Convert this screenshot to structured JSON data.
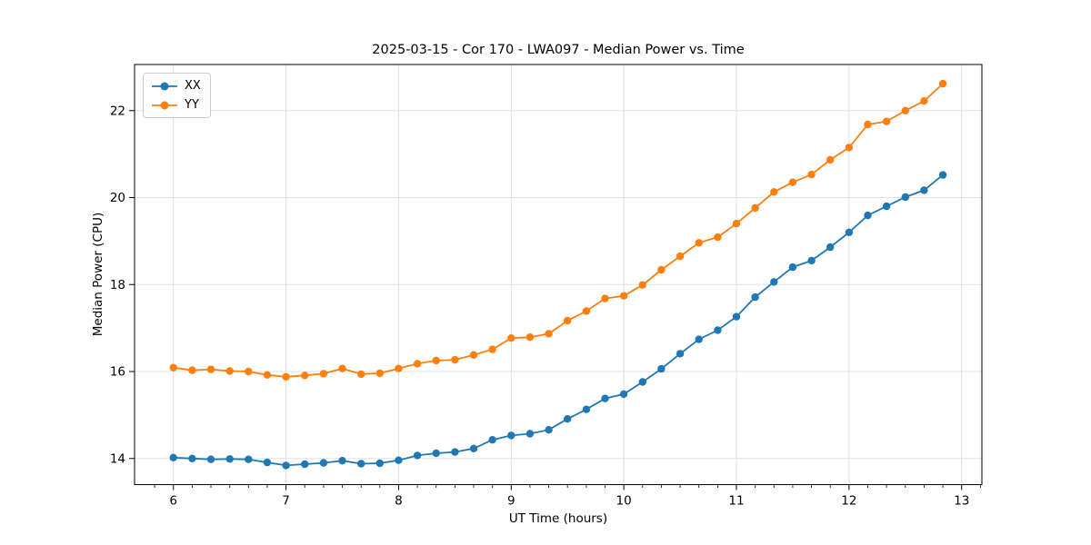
{
  "chart_data": {
    "type": "line",
    "title": "2025-03-15 - Cor 170 - LWA097 - Median Power vs. Time",
    "xlabel": "UT Time (hours)",
    "ylabel": "Median Power (CPU)",
    "xlim": [
      5.655,
      13.18
    ],
    "ylim": [
      13.4,
      23.06
    ],
    "x_ticks": [
      6,
      7,
      8,
      9,
      10,
      11,
      12,
      13
    ],
    "y_ticks": [
      14,
      16,
      18,
      20,
      22
    ],
    "x_minor_start": 5.8333,
    "x_minor_step": 0.16667,
    "grid": true,
    "grid_color": "#e0e0e0",
    "spine_color": "#000000",
    "text_color": "#000000",
    "legend_position": "upper-left",
    "marker": "o",
    "x": [
      6.0,
      6.1667,
      6.3333,
      6.5,
      6.6667,
      6.8333,
      7.0,
      7.1667,
      7.3333,
      7.5,
      7.6667,
      7.8333,
      8.0,
      8.1667,
      8.3333,
      8.5,
      8.6667,
      8.8333,
      9.0,
      9.1667,
      9.3333,
      9.5,
      9.6667,
      9.8333,
      10.0,
      10.1667,
      10.3333,
      10.5,
      10.6667,
      10.8333,
      11.0,
      11.1667,
      11.3333,
      11.5,
      11.6667,
      11.8333,
      12.0,
      12.1667,
      12.3333,
      12.5,
      12.6667,
      12.8333
    ],
    "series": [
      {
        "name": "XX",
        "color": "#1f77b4",
        "values": [
          14.02,
          14.0,
          13.98,
          13.99,
          13.98,
          13.91,
          13.84,
          13.87,
          13.9,
          13.95,
          13.88,
          13.89,
          13.96,
          14.07,
          14.12,
          14.15,
          14.23,
          14.43,
          14.53,
          14.57,
          14.66,
          14.91,
          15.13,
          15.38,
          15.48,
          15.76,
          16.06,
          16.41,
          16.74,
          16.95,
          17.26,
          17.71,
          18.06,
          18.4,
          18.55,
          18.86,
          19.2,
          19.59,
          19.8,
          20.01,
          20.17,
          20.52
        ]
      },
      {
        "name": "YY",
        "color": "#ff7f0e",
        "values": [
          16.09,
          16.03,
          16.05,
          16.01,
          16.0,
          15.92,
          15.88,
          15.91,
          15.95,
          16.07,
          15.94,
          15.96,
          16.07,
          16.18,
          16.25,
          16.27,
          16.38,
          16.51,
          16.77,
          16.79,
          16.87,
          17.17,
          17.39,
          17.68,
          17.74,
          17.99,
          18.34,
          18.65,
          18.96,
          19.09,
          19.4,
          19.76,
          20.13,
          20.35,
          20.53,
          20.87,
          21.15,
          21.68,
          21.75,
          22.0,
          22.22,
          22.62
        ]
      }
    ]
  }
}
